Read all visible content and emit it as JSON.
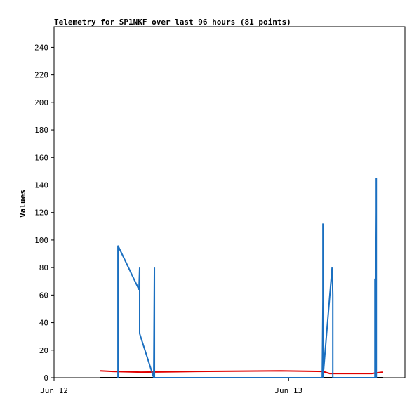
{
  "chart_data": {
    "type": "line",
    "title": "Telemetry for SP1NKF over last 96 hours (81 points)",
    "y_label": "Values",
    "xlim": [
      0,
      35.9
    ],
    "ylim": [
      0,
      255
    ],
    "xticks": [
      {
        "value": 0,
        "label": "Jun 12"
      },
      {
        "value": 24,
        "label": "Jun 13"
      }
    ],
    "yticks": [
      0,
      20,
      40,
      60,
      80,
      100,
      120,
      140,
      160,
      180,
      200,
      220,
      240
    ],
    "series": [
      {
        "color": "#000000",
        "x": [
          4.74,
          33.6
        ],
        "values": [
          0,
          0
        ]
      },
      {
        "color": "#e00000",
        "x": [
          4.74,
          6.0,
          8.9,
          14.6,
          23.2,
          27.5,
          28.2,
          32.5,
          33.6
        ],
        "values": [
          5,
          4.5,
          4,
          4.5,
          5,
          4.5,
          3,
          3,
          4
        ]
      },
      {
        "color": "#1a6fc0",
        "x": [
          6.54,
          6.54,
          8.69,
          8.76,
          8.76,
          10.2,
          10.27,
          10.27,
          27.44,
          27.51,
          27.51,
          27.51,
          28.45,
          28.52,
          28.52,
          28.52,
          32.83,
          32.83,
          32.9,
          32.97,
          32.97,
          32.97
        ],
        "values": [
          0,
          96,
          64,
          80,
          32,
          0,
          80,
          0,
          0,
          56,
          112,
          0,
          80,
          60,
          20,
          0,
          0,
          72,
          24,
          120,
          145,
          0
        ]
      }
    ]
  }
}
